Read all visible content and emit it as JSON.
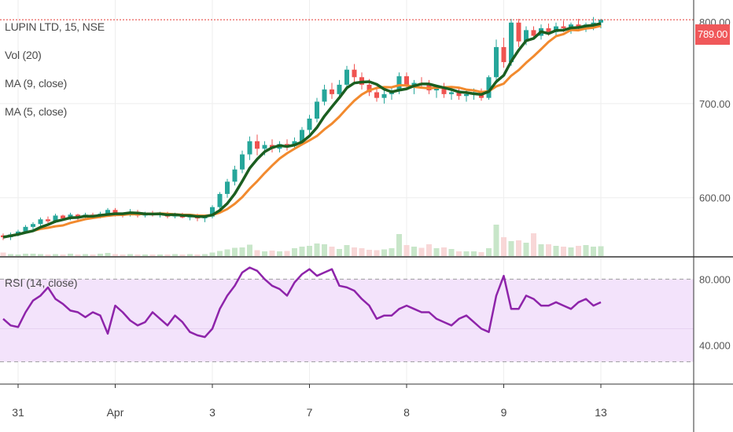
{
  "header": {
    "symbol_line": "LUPIN LTD, 15, NSE",
    "vol_label": "Vol (20)",
    "ma9_label": "MA (9, close)",
    "ma5_label": "MA (5, close)",
    "rsi_label": "RSI (14, close)"
  },
  "last_price": {
    "value": 789.0,
    "label": "789.00",
    "partial_tick": "800.00"
  },
  "colors": {
    "up": "#26a69a",
    "down": "#ef5350",
    "ma9": "#1b5e20",
    "ma5": "#f28a2e",
    "rsi_line": "#8e24aa",
    "rsi_band": "#f3e3fb",
    "last_price_line": "#e53935",
    "badge": "#f0585a"
  },
  "chart_data": [
    {
      "type": "candlestick",
      "title": "LUPIN LTD, 15, NSE",
      "ylim": [
        538,
        810
      ],
      "y_ticks": [
        {
          "value": 600,
          "label": "600.00"
        },
        {
          "value": 700,
          "label": "700.00"
        }
      ],
      "x_ticks": [
        {
          "index": 2,
          "label": "31"
        },
        {
          "index": 15,
          "label": "Apr"
        },
        {
          "index": 28,
          "label": "3"
        },
        {
          "index": 41,
          "label": "7"
        },
        {
          "index": 54,
          "label": "8"
        },
        {
          "index": 67,
          "label": "9"
        },
        {
          "index": 80,
          "label": "13"
        }
      ],
      "candles": [
        [
          560,
          562,
          555,
          558
        ],
        [
          558,
          563,
          555,
          561
        ],
        [
          561,
          566,
          559,
          564
        ],
        [
          564,
          571,
          562,
          569
        ],
        [
          569,
          574,
          566,
          572
        ],
        [
          572,
          579,
          570,
          577
        ],
        [
          577,
          580,
          573,
          575
        ],
        [
          575,
          583,
          573,
          581
        ],
        [
          581,
          582,
          576,
          578
        ],
        [
          578,
          584,
          576,
          582
        ],
        [
          582,
          583,
          576,
          579
        ],
        [
          579,
          584,
          577,
          582
        ],
        [
          582,
          584,
          578,
          580
        ],
        [
          580,
          585,
          578,
          583
        ],
        [
          583,
          589,
          580,
          587
        ],
        [
          587,
          589,
          580,
          583
        ],
        [
          583,
          584,
          579,
          582
        ],
        [
          582,
          588,
          580,
          585
        ],
        [
          585,
          587,
          579,
          581
        ],
        [
          581,
          585,
          579,
          583
        ],
        [
          583,
          586,
          580,
          582
        ],
        [
          582,
          585,
          579,
          583
        ],
        [
          583,
          585,
          578,
          580
        ],
        [
          580,
          584,
          578,
          582
        ],
        [
          582,
          584,
          578,
          579
        ],
        [
          579,
          583,
          576,
          581
        ],
        [
          581,
          583,
          575,
          578
        ],
        [
          578,
          582,
          574,
          580
        ],
        [
          580,
          592,
          578,
          590
        ],
        [
          590,
          606,
          588,
          604
        ],
        [
          604,
          620,
          600,
          617
        ],
        [
          617,
          634,
          613,
          630
        ],
        [
          630,
          650,
          626,
          646
        ],
        [
          646,
          665,
          640,
          660
        ],
        [
          660,
          667,
          645,
          652
        ],
        [
          652,
          660,
          645,
          656
        ],
        [
          656,
          662,
          648,
          652
        ],
        [
          652,
          660,
          648,
          657
        ],
        [
          657,
          662,
          650,
          655
        ],
        [
          655,
          664,
          652,
          660
        ],
        [
          660,
          675,
          657,
          672
        ],
        [
          672,
          688,
          668,
          684
        ],
        [
          684,
          706,
          680,
          702
        ],
        [
          702,
          720,
          698,
          715
        ],
        [
          715,
          722,
          705,
          710
        ],
        [
          710,
          725,
          706,
          720
        ],
        [
          720,
          740,
          716,
          736
        ],
        [
          736,
          742,
          722,
          728
        ],
        [
          728,
          733,
          715,
          720
        ],
        [
          720,
          726,
          708,
          712
        ],
        [
          712,
          718,
          702,
          706
        ],
        [
          706,
          714,
          700,
          710
        ],
        [
          710,
          718,
          704,
          714
        ],
        [
          714,
          733,
          710,
          729
        ],
        [
          729,
          733,
          715,
          719
        ],
        [
          719,
          725,
          710,
          722
        ],
        [
          722,
          728,
          716,
          720
        ],
        [
          720,
          725,
          710,
          714
        ],
        [
          714,
          720,
          706,
          718
        ],
        [
          718,
          722,
          706,
          710
        ],
        [
          710,
          716,
          704,
          712
        ],
        [
          712,
          716,
          704,
          708
        ],
        [
          708,
          714,
          702,
          710
        ],
        [
          710,
          716,
          704,
          712
        ],
        [
          712,
          716,
          703,
          706
        ],
        [
          706,
          730,
          704,
          728
        ],
        [
          728,
          768,
          724,
          760
        ],
        [
          760,
          770,
          738,
          744
        ],
        [
          744,
          790,
          740,
          786
        ],
        [
          786,
          790,
          760,
          766
        ],
        [
          766,
          782,
          762,
          778
        ],
        [
          778,
          782,
          768,
          772
        ],
        [
          772,
          784,
          768,
          780
        ],
        [
          780,
          785,
          772,
          776
        ],
        [
          776,
          786,
          772,
          782
        ],
        [
          782,
          788,
          776,
          780
        ],
        [
          780,
          786,
          774,
          784
        ],
        [
          784,
          790,
          778,
          782
        ],
        [
          782,
          786,
          776,
          784
        ],
        [
          784,
          792,
          778,
          786
        ],
        [
          786,
          790,
          780,
          789
        ]
      ],
      "volume": [
        9,
        5,
        4,
        6,
        6,
        5,
        4,
        5,
        4,
        6,
        4,
        5,
        4,
        6,
        8,
        5,
        4,
        5,
        4,
        4,
        4,
        4,
        4,
        5,
        4,
        5,
        4,
        5,
        9,
        13,
        17,
        21,
        22,
        29,
        15,
        12,
        14,
        12,
        13,
        20,
        24,
        26,
        32,
        30,
        24,
        18,
        28,
        22,
        20,
        16,
        15,
        17,
        20,
        56,
        28,
        24,
        21,
        30,
        20,
        22,
        18,
        12,
        12,
        12,
        10,
        20,
        80,
        48,
        38,
        40,
        34,
        58,
        30,
        30,
        26,
        24,
        22,
        26,
        28,
        24,
        25
      ]
    },
    {
      "type": "line",
      "title": "RSI (14, close)",
      "ylim": [
        17,
        93
      ],
      "y_ticks": [
        {
          "value": 80,
          "label": "80.000"
        },
        {
          "value": 40,
          "label": "40.000"
        }
      ],
      "band": [
        30,
        80
      ],
      "values": [
        56,
        52,
        51,
        60,
        67,
        70,
        75,
        68,
        65,
        61,
        60,
        57,
        60,
        58,
        47,
        64,
        60,
        55,
        52,
        54,
        60,
        56,
        52,
        58,
        54,
        48,
        46,
        45,
        50,
        62,
        70,
        76,
        84,
        87,
        85,
        80,
        76,
        74,
        70,
        78,
        83,
        86,
        82,
        84,
        86,
        76,
        75,
        73,
        68,
        64,
        56,
        58,
        58,
        62,
        64,
        62,
        60,
        60,
        56,
        54,
        52,
        56,
        58,
        54,
        50,
        48,
        70,
        82,
        62,
        62,
        70,
        68,
        64,
        64,
        66,
        64,
        62,
        66,
        68,
        64,
        66
      ]
    }
  ]
}
